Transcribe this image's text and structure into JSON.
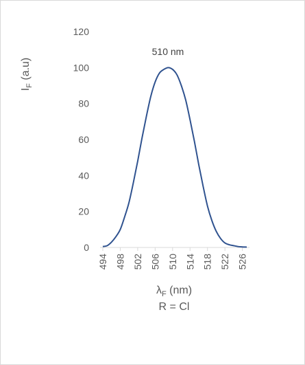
{
  "chart_data": {
    "type": "line",
    "annotation": "510 nm",
    "ylabel": {
      "main": "I",
      "sub": "F",
      "rest": " (a.u)"
    },
    "xlabel": {
      "main": "λ",
      "sub": "F",
      "rest": " (nm)"
    },
    "subtitle": "R = Cl",
    "xlim": [
      494,
      527
    ],
    "ylim": [
      0,
      120
    ],
    "x_ticks": [
      "494",
      "498",
      "502",
      "506",
      "510",
      "514",
      "518",
      "522",
      "526"
    ],
    "y_ticks": [
      "0",
      "20",
      "40",
      "60",
      "80",
      "100",
      "120"
    ],
    "series": [
      {
        "color": "#2f528f",
        "x": [
          494,
          495,
          496,
          497,
          498,
          499,
          500,
          501,
          502,
          503,
          504,
          505,
          506,
          507,
          508,
          509,
          510,
          511,
          512,
          513,
          514,
          515,
          516,
          517,
          518,
          519,
          520,
          521,
          522,
          523,
          524,
          525,
          526,
          527
        ],
        "y": [
          0.5,
          1,
          3,
          6,
          10,
          17,
          25,
          36,
          48,
          61,
          73,
          84,
          92,
          97,
          99,
          100,
          99,
          96,
          90,
          82,
          71,
          59,
          46,
          34,
          23,
          15,
          9,
          5,
          2.5,
          1.5,
          1,
          0.5,
          0.3,
          0.2
        ]
      }
    ]
  }
}
